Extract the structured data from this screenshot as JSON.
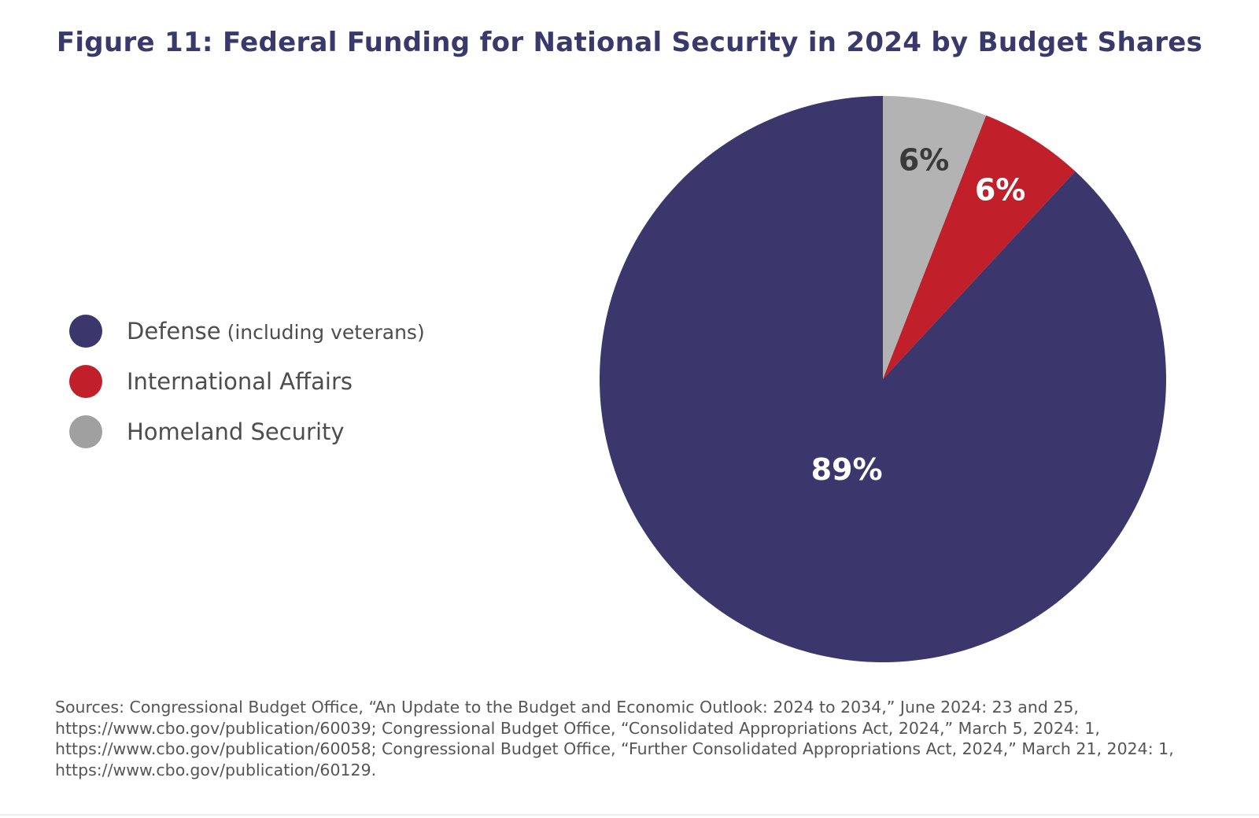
{
  "chart_data": {
    "type": "pie",
    "title": "Figure 11: Federal Funding for National Security in 2024 by Budget Shares",
    "slices": [
      {
        "name": "Homeland Security",
        "value": 6,
        "label": "6%",
        "color": "#b3b3b3",
        "label_color": "#3a3a3a"
      },
      {
        "name": "International Affairs",
        "value": 6,
        "label": "6%",
        "color": "#c11f2a",
        "label_color": "#ffffff"
      },
      {
        "name": "Defense",
        "value": 89,
        "label": "89%",
        "color": "#3b376c",
        "label_color": "#ffffff"
      }
    ],
    "start": "12 o'clock",
    "direction": "clockwise",
    "legend_placement": "left",
    "legend": [
      {
        "label": "Defense",
        "note": "(including veterans)",
        "color": "#3b376c"
      },
      {
        "label": "International Affairs",
        "note": "",
        "color": "#c11f2a"
      },
      {
        "label": "Homeland Security",
        "note": "",
        "color": "#a0a0a0"
      }
    ]
  },
  "sources": "Sources: Congressional Budget Office, “An Update to the Budget and Economic Outlook: 2024 to 2034,” June 2024: 23 and 25, https://www.cbo.gov/publication/60039; Congressional Budget Office, “Consolidated Appropriations Act, 2024,” March 5, 2024: 1, https://www.cbo.gov/publication/60058; Congressional Budget Office, “Further Consolidated Appropriations Act, 2024,” March 21, 2024: 1, https://www.cbo.gov/publication/60129."
}
